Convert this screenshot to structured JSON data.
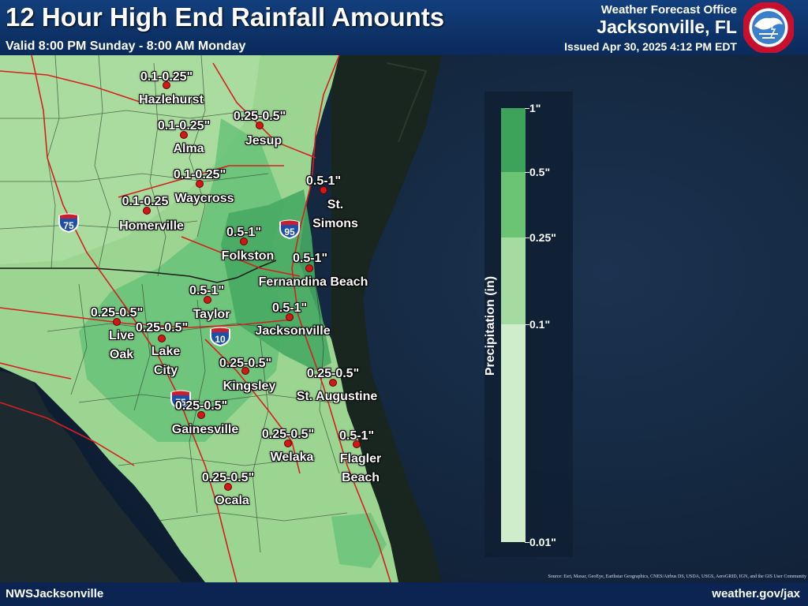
{
  "header": {
    "title": "12 Hour High End Rainfall Amounts",
    "valid": "Valid 8:00 PM Sunday - 8:00 AM Monday",
    "office_label": "Weather Forecast Office",
    "office_city": "Jacksonville, FL",
    "issued": "Issued Apr 30, 2025 4:12 PM EDT",
    "logo_text": "NATIONAL WEATHER SERVICE"
  },
  "footer": {
    "left": "NWSJacksonville",
    "right": "weather.gov/jax",
    "source": "Source: Esri, Maxar, GeoEye, Earthstar Geographics, CNES/Airbus DS, USDA, USGS, AeroGRID, IGN, and the GIS User Community"
  },
  "legend": {
    "title": "Precipitation (in)",
    "colors": [
      "#cfeccb",
      "#a3dba0",
      "#6bc474",
      "#3da35b"
    ],
    "ticks": [
      "0.01\"",
      "0.1\"",
      "0.25\"",
      "0.5\"",
      "1\""
    ]
  },
  "highways": [
    {
      "label": "75",
      "icon": "interstate-shield-icon"
    },
    {
      "label": "95",
      "icon": "interstate-shield-icon"
    },
    {
      "label": "10",
      "icon": "interstate-shield-icon"
    },
    {
      "label": "75",
      "icon": "interstate-shield-icon"
    }
  ],
  "locations": [
    {
      "name": "Hazlehurst",
      "amount": "0.1-0.25\""
    },
    {
      "name": "Alma",
      "amount": "0.1-0.25\""
    },
    {
      "name": "Jesup",
      "amount": "0.25-0.5\""
    },
    {
      "name": "Waycross",
      "amount": "0.1-0.25\""
    },
    {
      "name": "Homerville",
      "amount": "0.1-0.25"
    },
    {
      "name": "St.\nSimons",
      "amount": "0.5-1\""
    },
    {
      "name": "Folkston",
      "amount": "0.5-1\""
    },
    {
      "name": "Fernandina Beach",
      "amount": "0.5-1\""
    },
    {
      "name": "Taylor",
      "amount": "0.5-1\""
    },
    {
      "name": "Live\nOak",
      "amount": "0.25-0.5\""
    },
    {
      "name": "Lake\nCity",
      "amount": "0.25-0.5\""
    },
    {
      "name": "Jacksonville",
      "amount": "0.5-1\""
    },
    {
      "name": "Kingsley",
      "amount": "0.25-0.5\""
    },
    {
      "name": "St. Augustine",
      "amount": "0.25-0.5\""
    },
    {
      "name": "Gainesville",
      "amount": "0.25-0.5\""
    },
    {
      "name": "Welaka",
      "amount": "0.25-0.5\""
    },
    {
      "name": "Flagler\nBeach",
      "amount": "0.5-1\""
    },
    {
      "name": "Ocala",
      "amount": "0.25-0.5\""
    }
  ]
}
